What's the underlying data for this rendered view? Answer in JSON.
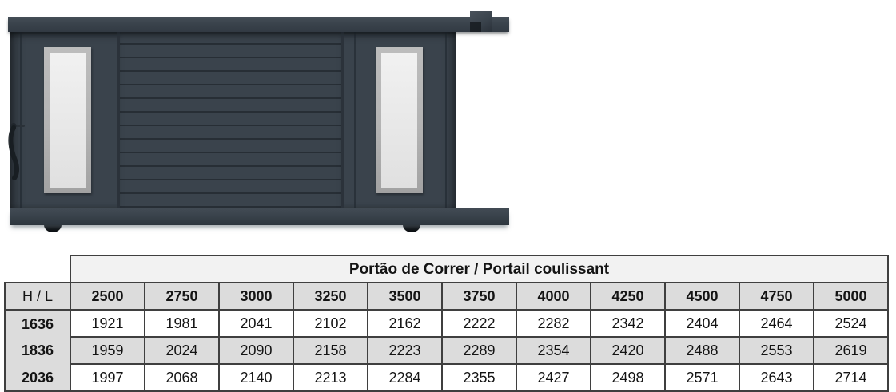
{
  "illustration": {
    "label": "sliding-gate-product-render",
    "colors": {
      "gate_body": "#3a434c",
      "slat_line": "#272e35",
      "window_frame": "#b3b3b3",
      "window_glass": "#e9e9e9",
      "hardware_black": "#0c0f12"
    }
  },
  "table": {
    "title": "Portão de Correr / Portail coulissant",
    "corner_label": "H  /  L",
    "columns": [
      "2500",
      "2750",
      "3000",
      "3250",
      "3500",
      "3750",
      "4000",
      "4250",
      "4500",
      "4750",
      "5000"
    ],
    "rows": [
      {
        "label": "1636",
        "values": [
          "1921",
          "1981",
          "2041",
          "2102",
          "2162",
          "2222",
          "2282",
          "2342",
          "2404",
          "2464",
          "2524"
        ]
      },
      {
        "label": "1836",
        "values": [
          "1959",
          "2024",
          "2090",
          "2158",
          "2223",
          "2289",
          "2354",
          "2420",
          "2488",
          "2553",
          "2619"
        ]
      },
      {
        "label": "2036",
        "values": [
          "1997",
          "2068",
          "2140",
          "2213",
          "2284",
          "2355",
          "2427",
          "2498",
          "2571",
          "2643",
          "2714"
        ]
      }
    ],
    "stripe_rows": [
      1
    ],
    "colors": {
      "border": "#3f3f3f",
      "header_fill": "#dcdcdc",
      "title_fill": "#f2f2f2",
      "stripe_fill": "#dcdcdc"
    }
  }
}
